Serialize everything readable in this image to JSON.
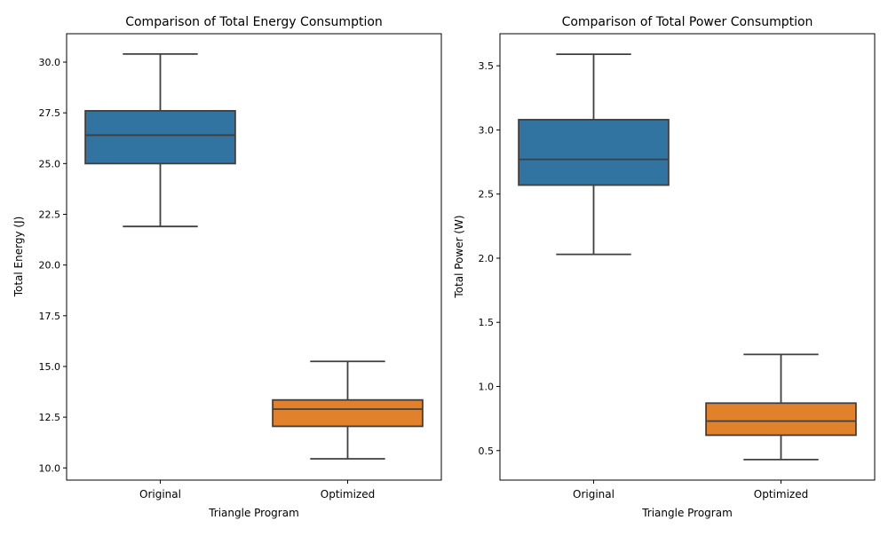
{
  "chart_data": [
    {
      "type": "box",
      "title": "Comparison of Total Energy Consumption",
      "xlabel": "Triangle Program",
      "ylabel": "Total Energy (J)",
      "ylim": [
        9.4,
        31.4
      ],
      "yticks": [
        10.0,
        12.5,
        15.0,
        17.5,
        20.0,
        22.5,
        25.0,
        27.5,
        30.0
      ],
      "ytick_labels": [
        "10.0",
        "12.5",
        "15.0",
        "17.5",
        "20.0",
        "22.5",
        "25.0",
        "27.5",
        "30.0"
      ],
      "categories": [
        "Original",
        "Optimized"
      ],
      "boxes": [
        {
          "category": "Original",
          "whisker_low": 21.9,
          "q1": 25.0,
          "median": 26.4,
          "q3": 27.6,
          "whisker_high": 30.4,
          "color": "#3274a1"
        },
        {
          "category": "Optimized",
          "whisker_low": 10.45,
          "q1": 12.05,
          "median": 12.9,
          "q3": 13.35,
          "whisker_high": 15.25,
          "color": "#e1812c"
        }
      ]
    },
    {
      "type": "box",
      "title": "Comparison of Total Power Consumption",
      "xlabel": "Triangle Program",
      "ylabel": "Total Power (W)",
      "ylim": [
        0.27,
        3.75
      ],
      "yticks": [
        0.5,
        1.0,
        1.5,
        2.0,
        2.5,
        3.0,
        3.5
      ],
      "ytick_labels": [
        "0.5",
        "1.0",
        "1.5",
        "2.0",
        "2.5",
        "3.0",
        "3.5"
      ],
      "categories": [
        "Original",
        "Optimized"
      ],
      "boxes": [
        {
          "category": "Original",
          "whisker_low": 2.03,
          "q1": 2.57,
          "median": 2.77,
          "q3": 3.08,
          "whisker_high": 3.59,
          "color": "#3274a1"
        },
        {
          "category": "Optimized",
          "whisker_low": 0.43,
          "q1": 0.62,
          "median": 0.73,
          "q3": 0.87,
          "whisker_high": 1.25,
          "color": "#e1812c"
        }
      ]
    }
  ]
}
